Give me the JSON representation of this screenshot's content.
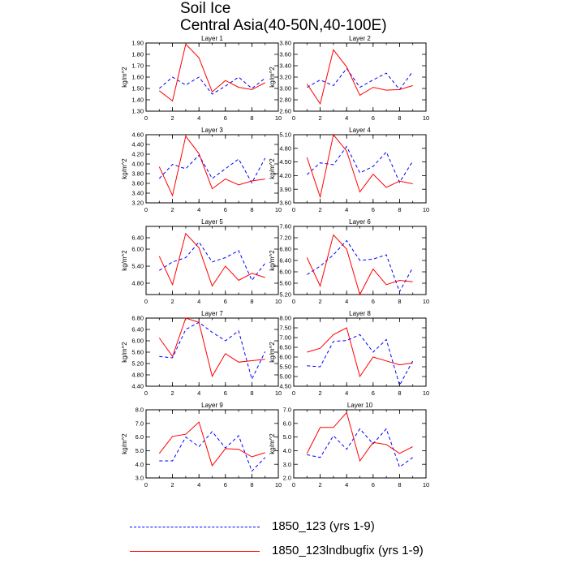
{
  "title": {
    "line1": "Soil Ice",
    "line2": "Central Asia(40-50N,40-100E)"
  },
  "legend": [
    {
      "label": "1850_123 (yrs 1-9)",
      "color": "#0000ff",
      "style": "dashed"
    },
    {
      "label": "1850_123lndbugfix (yrs 1-9)",
      "color": "#ff0000",
      "style": "solid"
    }
  ],
  "chart_data": [
    {
      "type": "line",
      "title": "Layer 1",
      "ylabel": "kg/m^2",
      "xlim": [
        0,
        10
      ],
      "x_ticks": [
        0,
        2,
        4,
        6,
        8,
        10
      ],
      "x_minor_step": 1,
      "ylim": [
        1.3,
        1.9
      ],
      "y_ticks": [
        "1.30",
        "1.40",
        "1.50",
        "1.60",
        "1.70",
        "1.80",
        "1.90"
      ],
      "x": [
        1,
        2,
        3,
        4,
        5,
        6,
        7,
        8,
        9
      ],
      "series": [
        {
          "name": "1850_123 (yrs 1-9)",
          "color": "#0000ff",
          "style": "dashed",
          "values": [
            1.5,
            1.6,
            1.53,
            1.6,
            1.45,
            1.52,
            1.6,
            1.5,
            1.59
          ]
        },
        {
          "name": "1850_123lndbugfix (yrs 1-9)",
          "color": "#ff0000",
          "style": "solid",
          "values": [
            1.48,
            1.39,
            1.89,
            1.77,
            1.47,
            1.57,
            1.51,
            1.49,
            1.55
          ]
        }
      ]
    },
    {
      "type": "line",
      "title": "Layer 2",
      "ylabel": "kg/m^2",
      "xlim": [
        0,
        10
      ],
      "x_ticks": [
        0,
        2,
        4,
        6,
        8,
        10
      ],
      "x_minor_step": 1,
      "ylim": [
        2.6,
        3.8
      ],
      "y_ticks": [
        "2.60",
        "2.80",
        "3.00",
        "3.20",
        "3.40",
        "3.60",
        "3.80"
      ],
      "x": [
        1,
        2,
        3,
        4,
        5,
        6,
        7,
        8,
        9
      ],
      "series": [
        {
          "name": "1850_123 (yrs 1-9)",
          "color": "#0000ff",
          "style": "dashed",
          "values": [
            3.02,
            3.15,
            3.05,
            3.35,
            3.02,
            3.15,
            3.27,
            2.98,
            3.3
          ]
        },
        {
          "name": "1850_123lndbugfix (yrs 1-9)",
          "color": "#ff0000",
          "style": "solid",
          "values": [
            3.08,
            2.73,
            3.68,
            3.38,
            2.88,
            3.02,
            2.97,
            2.98,
            3.05
          ]
        }
      ]
    },
    {
      "type": "line",
      "title": "Layer 3",
      "ylabel": "kg/m^2",
      "xlim": [
        0,
        10
      ],
      "x_ticks": [
        0,
        2,
        4,
        6,
        8,
        10
      ],
      "x_minor_step": 1,
      "ylim": [
        3.2,
        4.6
      ],
      "y_ticks": [
        "3.20",
        "3.40",
        "3.60",
        "3.80",
        "4.00",
        "4.20",
        "4.40",
        "4.60"
      ],
      "x": [
        1,
        2,
        3,
        4,
        5,
        6,
        7,
        8,
        9
      ],
      "series": [
        {
          "name": "1850_123 (yrs 1-9)",
          "color": "#0000ff",
          "style": "dashed",
          "values": [
            3.7,
            3.99,
            3.9,
            4.18,
            3.7,
            3.9,
            4.1,
            3.61,
            4.12
          ]
        },
        {
          "name": "1850_123lndbugfix (yrs 1-9)",
          "color": "#ff0000",
          "style": "solid",
          "values": [
            3.94,
            3.35,
            4.57,
            4.21,
            3.49,
            3.69,
            3.57,
            3.65,
            3.69
          ]
        }
      ]
    },
    {
      "type": "line",
      "title": "Layer 4",
      "ylabel": "kg/m^2",
      "xlim": [
        0,
        10
      ],
      "x_ticks": [
        0,
        2,
        4,
        6,
        8,
        10
      ],
      "x_minor_step": 1,
      "ylim": [
        3.6,
        5.1
      ],
      "y_ticks": [
        "3.60",
        "3.90",
        "4.20",
        "4.50",
        "4.80",
        "5.10"
      ],
      "x": [
        1,
        2,
        3,
        4,
        5,
        6,
        7,
        8,
        9
      ],
      "series": [
        {
          "name": "1850_123 (yrs 1-9)",
          "color": "#0000ff",
          "style": "dashed",
          "values": [
            4.22,
            4.48,
            4.44,
            4.84,
            4.26,
            4.4,
            4.72,
            4.05,
            4.52
          ]
        },
        {
          "name": "1850_123lndbugfix (yrs 1-9)",
          "color": "#ff0000",
          "style": "solid",
          "values": [
            4.6,
            3.73,
            5.1,
            4.74,
            3.84,
            4.23,
            3.94,
            4.08,
            4.02
          ]
        }
      ]
    },
    {
      "type": "line",
      "title": "Layer 5",
      "ylabel": "kg/m^2",
      "xlim": [
        0,
        10
      ],
      "x_ticks": [
        0,
        2,
        4,
        6,
        8,
        10
      ],
      "x_minor_step": 1,
      "ylim": [
        4.4,
        6.8
      ],
      "y_ticks": [
        "4.80",
        "5.40",
        "6.00",
        "6.40"
      ],
      "y_ticks_at": [
        4.8,
        5.4,
        6.0,
        6.4
      ],
      "x": [
        1,
        2,
        3,
        4,
        5,
        6,
        7,
        8,
        9
      ],
      "series": [
        {
          "name": "1850_123 (yrs 1-9)",
          "color": "#0000ff",
          "style": "dashed",
          "values": [
            5.25,
            5.55,
            5.7,
            6.25,
            5.55,
            5.7,
            5.95,
            4.9,
            5.5
          ]
        },
        {
          "name": "1850_123lndbugfix (yrs 1-9)",
          "color": "#ff0000",
          "style": "solid",
          "values": [
            5.75,
            4.75,
            6.55,
            6.05,
            4.7,
            5.4,
            4.9,
            5.15,
            5.0
          ]
        }
      ]
    },
    {
      "type": "line",
      "title": "Layer 6",
      "ylabel": "kg/m^2",
      "xlim": [
        0,
        10
      ],
      "x_ticks": [
        0,
        2,
        4,
        6,
        8,
        10
      ],
      "x_minor_step": 1,
      "ylim": [
        5.2,
        7.6
      ],
      "y_ticks": [
        "5.20",
        "5.60",
        "6.00",
        "6.40",
        "6.80",
        "7.20",
        "7.60"
      ],
      "x": [
        1,
        2,
        3,
        4,
        5,
        6,
        7,
        8,
        9
      ],
      "series": [
        {
          "name": "1850_123 (yrs 1-9)",
          "color": "#0000ff",
          "style": "dashed",
          "values": [
            5.9,
            6.2,
            6.6,
            7.1,
            6.4,
            6.45,
            6.6,
            5.3,
            6.15
          ]
        },
        {
          "name": "1850_123lndbugfix (yrs 1-9)",
          "color": "#ff0000",
          "style": "solid",
          "values": [
            6.5,
            5.5,
            7.3,
            6.8,
            5.2,
            6.1,
            5.55,
            5.7,
            5.65
          ]
        }
      ]
    },
    {
      "type": "line",
      "title": "Layer 7",
      "ylabel": "kg/m^2",
      "xlim": [
        0,
        10
      ],
      "x_ticks": [
        0,
        2,
        4,
        6,
        8,
        10
      ],
      "x_minor_step": 1,
      "ylim": [
        4.4,
        6.8
      ],
      "y_ticks": [
        "4.40",
        "4.80",
        "5.20",
        "5.60",
        "6.00",
        "6.40",
        "6.80"
      ],
      "x": [
        1,
        2,
        3,
        4,
        5,
        6,
        7,
        8,
        9
      ],
      "series": [
        {
          "name": "1850_123 (yrs 1-9)",
          "color": "#0000ff",
          "style": "dashed",
          "values": [
            5.45,
            5.4,
            6.4,
            6.65,
            6.3,
            6.0,
            6.35,
            4.65,
            5.62
          ]
        },
        {
          "name": "1850_123lndbugfix (yrs 1-9)",
          "color": "#ff0000",
          "style": "solid",
          "values": [
            6.1,
            5.45,
            6.8,
            6.65,
            4.75,
            5.55,
            5.25,
            5.3,
            5.35
          ]
        }
      ]
    },
    {
      "type": "line",
      "title": "Layer 8",
      "ylabel": "kg/m^2",
      "xlim": [
        0,
        10
      ],
      "x_ticks": [
        0,
        2,
        4,
        6,
        8,
        10
      ],
      "x_minor_step": 1,
      "ylim": [
        4.5,
        8.0
      ],
      "y_ticks": [
        "4.50",
        "5.00",
        "5.50",
        "6.00",
        "6.50",
        "7.00",
        "7.50",
        "8.00"
      ],
      "x": [
        1,
        2,
        3,
        4,
        5,
        6,
        7,
        8,
        9
      ],
      "series": [
        {
          "name": "1850_123 (yrs 1-9)",
          "color": "#0000ff",
          "style": "dashed",
          "values": [
            5.55,
            5.5,
            6.8,
            6.85,
            7.15,
            6.25,
            6.9,
            4.55,
            5.8
          ]
        },
        {
          "name": "1850_123lndbugfix (yrs 1-9)",
          "color": "#ff0000",
          "style": "solid",
          "values": [
            6.25,
            6.45,
            7.15,
            7.5,
            5.0,
            6.0,
            5.8,
            5.6,
            5.7
          ]
        }
      ]
    },
    {
      "type": "line",
      "title": "Layer 9",
      "ylabel": "kg/m^2",
      "xlim": [
        0,
        10
      ],
      "x_ticks": [
        0,
        2,
        4,
        6,
        8,
        10
      ],
      "x_minor_step": 1,
      "ylim": [
        3.0,
        8.0
      ],
      "y_ticks": [
        "3.0",
        "4.0",
        "5.0",
        "6.0",
        "7.0",
        "8.0"
      ],
      "x": [
        1,
        2,
        3,
        4,
        5,
        6,
        7,
        8,
        9
      ],
      "series": [
        {
          "name": "1850_123 (yrs 1-9)",
          "color": "#0000ff",
          "style": "dashed",
          "values": [
            4.25,
            4.25,
            6.0,
            5.3,
            6.4,
            5.2,
            6.1,
            3.5,
            4.5
          ]
        },
        {
          "name": "1850_123lndbugfix (yrs 1-9)",
          "color": "#ff0000",
          "style": "solid",
          "values": [
            4.8,
            6.05,
            6.2,
            7.1,
            3.9,
            5.15,
            5.1,
            4.55,
            4.85
          ]
        }
      ]
    },
    {
      "type": "line",
      "title": "Layer 10",
      "ylabel": "kg/m^2",
      "xlim": [
        0,
        10
      ],
      "x_ticks": [
        0,
        2,
        4,
        6,
        8,
        10
      ],
      "x_minor_step": 1,
      "ylim": [
        2.0,
        7.0
      ],
      "y_ticks": [
        "2.0",
        "3.0",
        "4.0",
        "5.0",
        "6.0",
        "7.0"
      ],
      "x": [
        1,
        2,
        3,
        4,
        5,
        6,
        7,
        8,
        9
      ],
      "series": [
        {
          "name": "1850_123 (yrs 1-9)",
          "color": "#0000ff",
          "style": "dashed",
          "values": [
            3.7,
            3.5,
            5.1,
            4.1,
            5.6,
            4.5,
            5.6,
            2.8,
            3.5
          ]
        },
        {
          "name": "1850_123lndbugfix (yrs 1-9)",
          "color": "#ff0000",
          "style": "solid",
          "values": [
            3.8,
            5.7,
            5.7,
            6.8,
            3.25,
            4.6,
            4.45,
            3.8,
            4.3
          ]
        }
      ]
    }
  ]
}
